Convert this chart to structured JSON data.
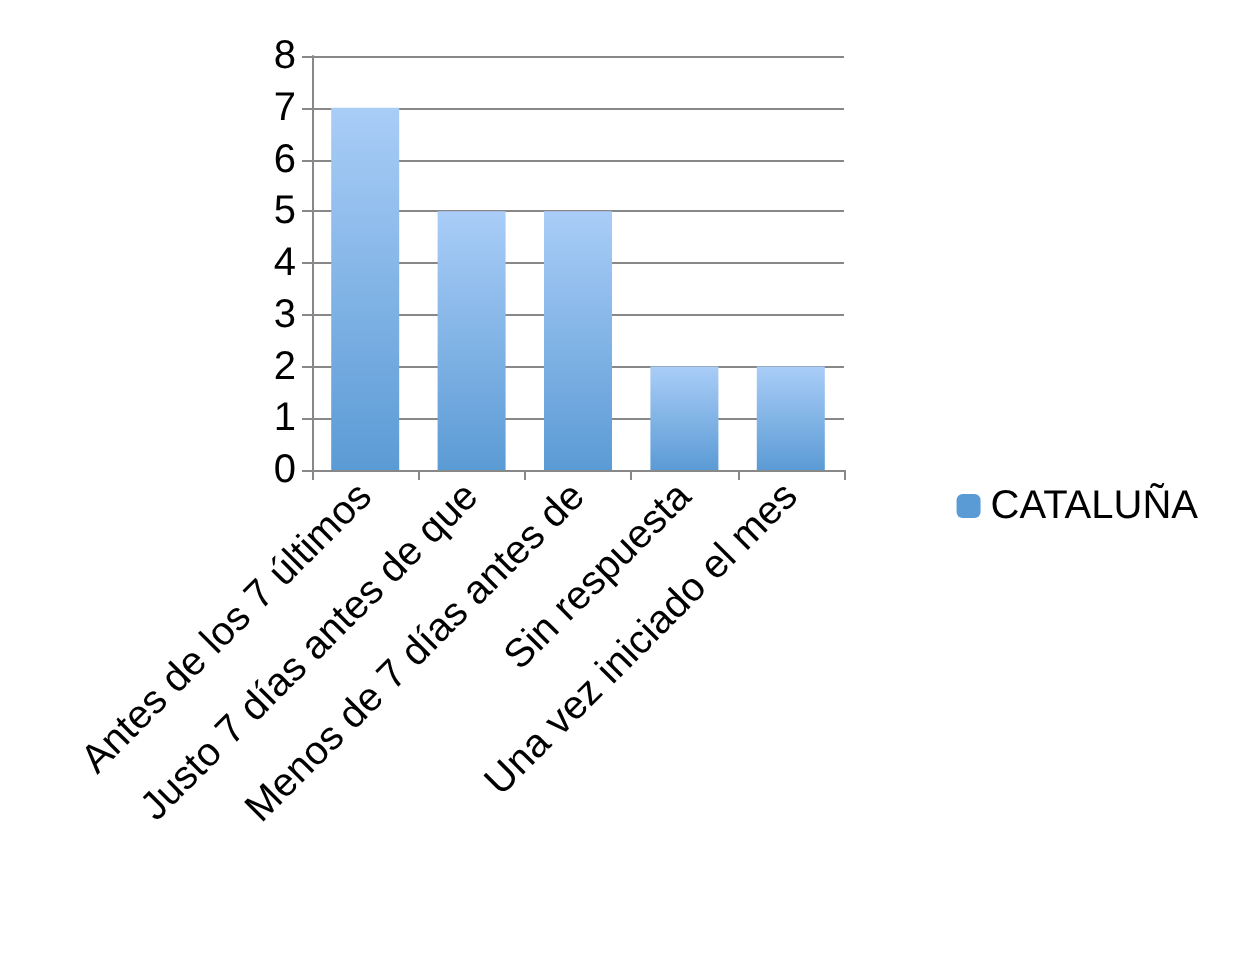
{
  "chart_data": {
    "type": "bar",
    "categories": [
      "Antes de los 7 últimos",
      "Justo 7 días antes de que",
      "Menos de 7 días antes de",
      "Sin respuesta",
      "Una vez iniciado el mes"
    ],
    "series": [
      {
        "name": "CATALUÑA",
        "color": "#5b9bd5",
        "values": [
          7,
          5,
          5,
          2,
          2
        ]
      }
    ],
    "ylim": [
      0,
      8
    ],
    "yticks": [
      0,
      1,
      2,
      3,
      4,
      5,
      6,
      7,
      8
    ],
    "grid": "y",
    "legend": "right"
  }
}
